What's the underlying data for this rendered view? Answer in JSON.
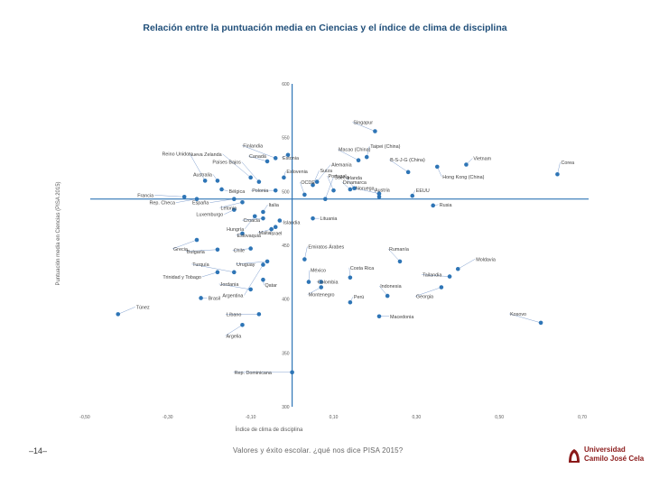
{
  "chart_data": {
    "type": "scatter",
    "title": "Relación entre la puntuación media en Ciencias y el índice de clima de disciplina",
    "xlabel": "Índice de clima de disciplina",
    "ylabel": "Puntuación media en Ciencias (PISA 2015)",
    "xlim": [
      -0.5,
      0.7
    ],
    "ylim": [
      300,
      600
    ],
    "xticks": [
      "-0,50",
      "-0,30",
      "-0,10",
      "0,10",
      "0,30",
      "0,50",
      "0,70"
    ],
    "yticks": [
      "300",
      "350",
      "400",
      "450",
      "500",
      "550",
      "600"
    ],
    "crosshair": {
      "x": 0.0,
      "y": 493
    },
    "grid": false,
    "points": [
      {
        "label": "Singapur",
        "x": 0.2,
        "y": 556
      },
      {
        "label": "Alemania",
        "x": 0.06,
        "y": 509
      },
      {
        "label": "Suiza",
        "x": 0.05,
        "y": 506
      },
      {
        "label": "Macao (China)",
        "x": 0.16,
        "y": 529
      },
      {
        "label": "Taipei (China)",
        "x": 0.18,
        "y": 532
      },
      {
        "label": "Vietnam",
        "x": 0.42,
        "y": 525
      },
      {
        "label": "Corea",
        "x": 0.64,
        "y": 516
      },
      {
        "label": "B-S-J-G (China)",
        "x": 0.28,
        "y": 518
      },
      {
        "label": "Hong Kong (China)",
        "x": 0.35,
        "y": 523
      },
      {
        "label": "Finlandia",
        "x": -0.04,
        "y": 531
      },
      {
        "label": "Nueva Zelanda",
        "x": -0.1,
        "y": 513
      },
      {
        "label": "Países Bajos",
        "x": -0.08,
        "y": 509
      },
      {
        "label": "Estonia",
        "x": -0.01,
        "y": 534
      },
      {
        "label": "Suecia",
        "x": 0.08,
        "y": 493
      },
      {
        "label": "OCDE",
        "x": 0.03,
        "y": 497
      },
      {
        "label": "Portugal",
        "x": 0.1,
        "y": 501
      },
      {
        "label": "Irlanda",
        "x": 0.15,
        "y": 503
      },
      {
        "label": "Dinamarca",
        "x": 0.14,
        "y": 502
      },
      {
        "label": "Noruega",
        "x": 0.21,
        "y": 498
      },
      {
        "label": "Austria",
        "x": 0.21,
        "y": 495
      },
      {
        "label": "EEUU",
        "x": 0.29,
        "y": 496
      },
      {
        "label": "Rusia",
        "x": 0.34,
        "y": 487
      },
      {
        "label": "Reino Unido",
        "x": -0.21,
        "y": 510
      },
      {
        "label": "Canadá",
        "x": -0.06,
        "y": 528
      },
      {
        "label": "Eslovenia",
        "x": -0.02,
        "y": 513
      },
      {
        "label": "Australia",
        "x": -0.18,
        "y": 510
      },
      {
        "label": "España",
        "x": -0.14,
        "y": 493
      },
      {
        "label": "Francia",
        "x": -0.26,
        "y": 495
      },
      {
        "label": "Bélgica",
        "x": -0.17,
        "y": 502
      },
      {
        "label": "Polonia",
        "x": -0.04,
        "y": 501
      },
      {
        "label": "Rep. Checa",
        "x": -0.23,
        "y": 493
      },
      {
        "label": "Letonia",
        "x": -0.12,
        "y": 490
      },
      {
        "label": "Italia",
        "x": -0.07,
        "y": 481
      },
      {
        "label": "Luxemburgo",
        "x": -0.14,
        "y": 483
      },
      {
        "label": "Lituania",
        "x": 0.05,
        "y": 475
      },
      {
        "label": "Argentina",
        "x": -0.07,
        "y": 432
      },
      {
        "label": "Hungría",
        "x": -0.09,
        "y": 477
      },
      {
        "label": "Croacia",
        "x": -0.07,
        "y": 475
      },
      {
        "label": "Islandia",
        "x": -0.03,
        "y": 473
      },
      {
        "label": "Israel",
        "x": -0.04,
        "y": 467
      },
      {
        "label": "Eslovaquia",
        "x": -0.12,
        "y": 461
      },
      {
        "label": "Grecia",
        "x": -0.23,
        "y": 455
      },
      {
        "label": "Malta",
        "x": -0.05,
        "y": 465
      },
      {
        "label": "Bulgaria",
        "x": -0.18,
        "y": 446
      },
      {
        "label": "Emiratos Árabes",
        "x": 0.03,
        "y": 437
      },
      {
        "label": "Chile",
        "x": -0.1,
        "y": 447
      },
      {
        "label": "Turquía",
        "x": -0.14,
        "y": 425
      },
      {
        "label": "Uruguay",
        "x": -0.06,
        "y": 435
      },
      {
        "label": "Trinidad y Tobago",
        "x": -0.18,
        "y": 425
      },
      {
        "label": "Jordania",
        "x": -0.1,
        "y": 409
      },
      {
        "label": "Qatar",
        "x": -0.07,
        "y": 418
      },
      {
        "label": "México",
        "x": 0.04,
        "y": 416
      },
      {
        "label": "Colombia",
        "x": 0.07,
        "y": 416
      },
      {
        "label": "Costa Rica",
        "x": 0.14,
        "y": 420
      },
      {
        "label": "Montenegro",
        "x": 0.07,
        "y": 411
      },
      {
        "label": "Perú",
        "x": 0.14,
        "y": 397
      },
      {
        "label": "Indonesia",
        "x": 0.23,
        "y": 403
      },
      {
        "label": "Georgia",
        "x": 0.36,
        "y": 411
      },
      {
        "label": "Tailandia",
        "x": 0.38,
        "y": 421
      },
      {
        "label": "Moldavia",
        "x": 0.4,
        "y": 428
      },
      {
        "label": "Rumanía",
        "x": 0.26,
        "y": 435
      },
      {
        "label": "Brasil",
        "x": -0.22,
        "y": 401
      },
      {
        "label": "Túnez",
        "x": -0.42,
        "y": 386
      },
      {
        "label": "Líbano",
        "x": -0.08,
        "y": 386
      },
      {
        "label": "Argelia",
        "x": -0.12,
        "y": 376
      },
      {
        "label": "Macedonia",
        "x": 0.21,
        "y": 384
      },
      {
        "label": "Kosovo",
        "x": 0.6,
        "y": 378
      },
      {
        "label": "Rep. Dominicana",
        "x": 0.0,
        "y": 332
      }
    ]
  },
  "footer": {
    "page": "–14–",
    "caption": "Valores y éxito escolar. ¿qué nos dice PISA 2015?",
    "logo_line1": "Universidad",
    "logo_line2": "Camilo José Cela"
  },
  "colors": {
    "title": "#1f4e79",
    "axis": "#2e75b6",
    "point": "#2e75b6",
    "leader": "#7f9fcf",
    "logo": "#8b1a1a"
  }
}
